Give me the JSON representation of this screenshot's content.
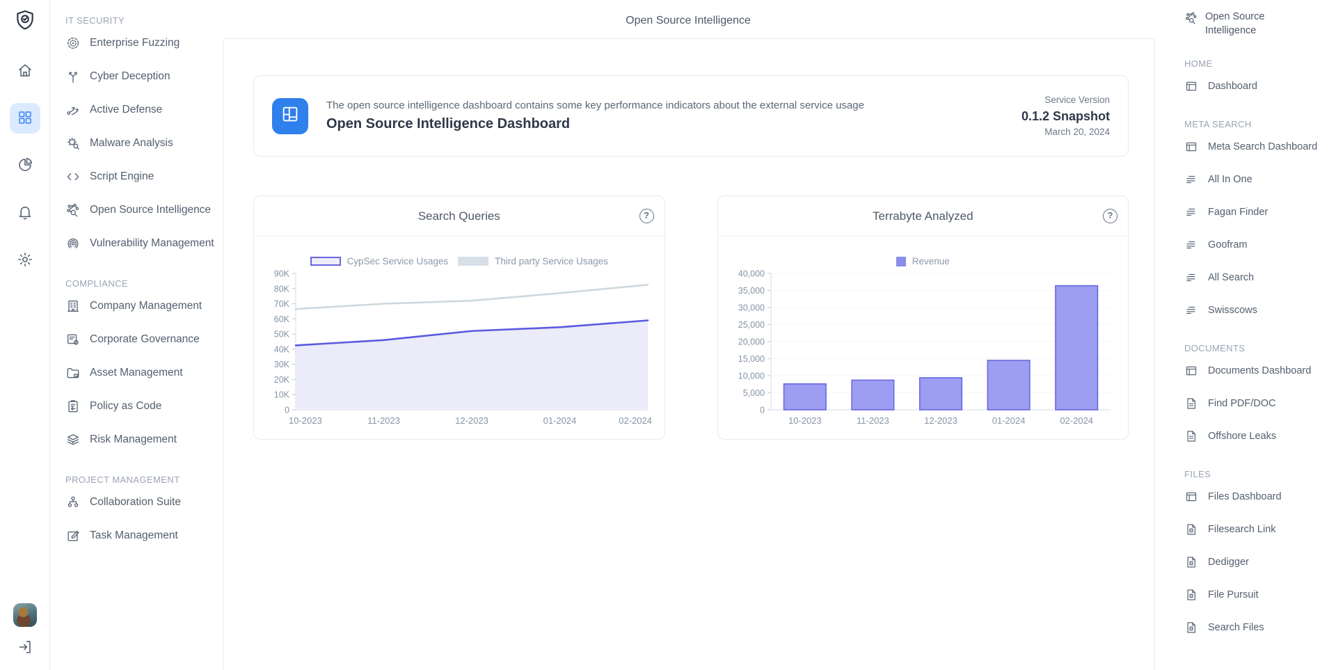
{
  "page": {
    "title": "Open Source Intelligence"
  },
  "icon_rail": {
    "logo_icon": "shield-check",
    "items": [
      {
        "name": "home",
        "icon": "home",
        "active": false
      },
      {
        "name": "apps",
        "icon": "apps-grid",
        "active": true
      },
      {
        "name": "analytics",
        "icon": "pie-chart",
        "active": false
      },
      {
        "name": "notifications",
        "icon": "bell",
        "active": false
      },
      {
        "name": "settings",
        "icon": "gear",
        "active": false
      }
    ],
    "active_bg": "#dbeafe",
    "active_color": "#3b82f6",
    "logout_icon": "logout"
  },
  "left_sidebar": {
    "sections": [
      {
        "label": "IT SECURITY",
        "items": [
          {
            "label": "Enterprise Fuzzing",
            "icon": "target"
          },
          {
            "label": "Cyber Deception",
            "icon": "branch"
          },
          {
            "label": "Active Defense",
            "icon": "route-arrows"
          },
          {
            "label": "Malware Analysis",
            "icon": "bug-search"
          },
          {
            "label": "Script Engine",
            "icon": "code"
          },
          {
            "label": "Open Source Intelligence",
            "icon": "network-search"
          },
          {
            "label": "Vulnerability Management",
            "icon": "fingerprint"
          }
        ]
      },
      {
        "label": "COMPLIANCE",
        "items": [
          {
            "label": "Company Management",
            "icon": "building"
          },
          {
            "label": "Corporate Governance",
            "icon": "document-gear"
          },
          {
            "label": "Asset Management",
            "icon": "folder"
          },
          {
            "label": "Policy as Code",
            "icon": "clipboard-arrow"
          },
          {
            "label": "Risk Management",
            "icon": "layers-eye"
          }
        ]
      },
      {
        "label": "PROJECT MANAGEMENT",
        "items": [
          {
            "label": "Collaboration Suite",
            "icon": "org-chart"
          },
          {
            "label": "Task Management",
            "icon": "edit-note"
          }
        ]
      }
    ]
  },
  "header_card": {
    "icon": "dashboard-layout",
    "icon_bg": "#2f7fec",
    "description": "The open source intelligence dashboard contains some key performance indicators about the external service usage",
    "title": "Open Source Intelligence Dashboard",
    "service_version_label": "Service Version",
    "version": "0.1.2 Snapshot",
    "date": "March 20, 2024"
  },
  "chart_data": [
    {
      "type": "area",
      "title": "Search Queries",
      "categories": [
        "10-2023",
        "11-2023",
        "12-2023",
        "01-2024",
        "02-2024"
      ],
      "series": [
        {
          "name": "CypSec Service Usages",
          "values": [
            42500,
            46000,
            52000,
            54500,
            59000
          ],
          "color": "#5a5ae0",
          "fill": "#ebebfa"
        },
        {
          "name": "Third party Service Usages",
          "values": [
            66500,
            70000,
            72000,
            77000,
            82500
          ],
          "color": "#cfd8de",
          "fill": "none"
        }
      ],
      "ylim": [
        0,
        90000
      ],
      "ytick_step": 10000,
      "ytick_format": "thousandsK",
      "legend_position": "top",
      "grid": false,
      "has_help_icon": true,
      "help_symbol": "?"
    },
    {
      "type": "bar",
      "title": "Terrabyte Analyzed",
      "categories": [
        "10-2023",
        "11-2023",
        "12-2023",
        "01-2024",
        "02-2024"
      ],
      "series": [
        {
          "name": "Revenue",
          "values": [
            7600,
            8700,
            9400,
            14500,
            36400
          ],
          "color": "#9d9df1",
          "border": "#6868e2"
        }
      ],
      "ylim": [
        0,
        40000
      ],
      "ytick_step": 5000,
      "ytick_format": "comma",
      "legend_position": "top",
      "grid": true,
      "has_help_icon": true,
      "help_symbol": "?"
    }
  ],
  "right_sidebar": {
    "title": "Open Source Intelligence",
    "icon": "network-search",
    "sections": [
      {
        "label": "HOME",
        "items": [
          {
            "label": "Dashboard",
            "icon": "window"
          }
        ]
      },
      {
        "label": "META SEARCH",
        "items": [
          {
            "label": "Meta Search Dashboard",
            "icon": "window"
          },
          {
            "label": "All In One",
            "icon": "list"
          },
          {
            "label": "Fagan Finder",
            "icon": "list"
          },
          {
            "label": "Goofram",
            "icon": "list"
          },
          {
            "label": "All Search",
            "icon": "list"
          },
          {
            "label": "Swisscows",
            "icon": "list"
          }
        ]
      },
      {
        "label": "DOCUMENTS",
        "items": [
          {
            "label": "Documents Dashboard",
            "icon": "window"
          },
          {
            "label": "Find PDF/DOC",
            "icon": "document"
          },
          {
            "label": "Offshore Leaks",
            "icon": "document"
          }
        ]
      },
      {
        "label": "FILES",
        "items": [
          {
            "label": "Files Dashboard",
            "icon": "window"
          },
          {
            "label": "Filesearch Link",
            "icon": "file"
          },
          {
            "label": "Dedigger",
            "icon": "file"
          },
          {
            "label": "File Pursuit",
            "icon": "file"
          },
          {
            "label": "Search Files",
            "icon": "file"
          }
        ]
      }
    ]
  },
  "colors": {
    "accent_blue": "#3b82f6",
    "accent_blue_bg": "#dbeafe",
    "header_icon_bg": "#2f7fec",
    "chart_purple": "#5a5ae0",
    "chart_purple_fill": "#ebebfa",
    "chart_gray_line": "#cfd8de",
    "bar_fill": "#9d9df1",
    "bar_border": "#6868e2",
    "card_border": "#e8eaee",
    "text_primary": "#2e3848",
    "text_secondary": "#5b6877",
    "text_muted": "#8c99ab"
  }
}
